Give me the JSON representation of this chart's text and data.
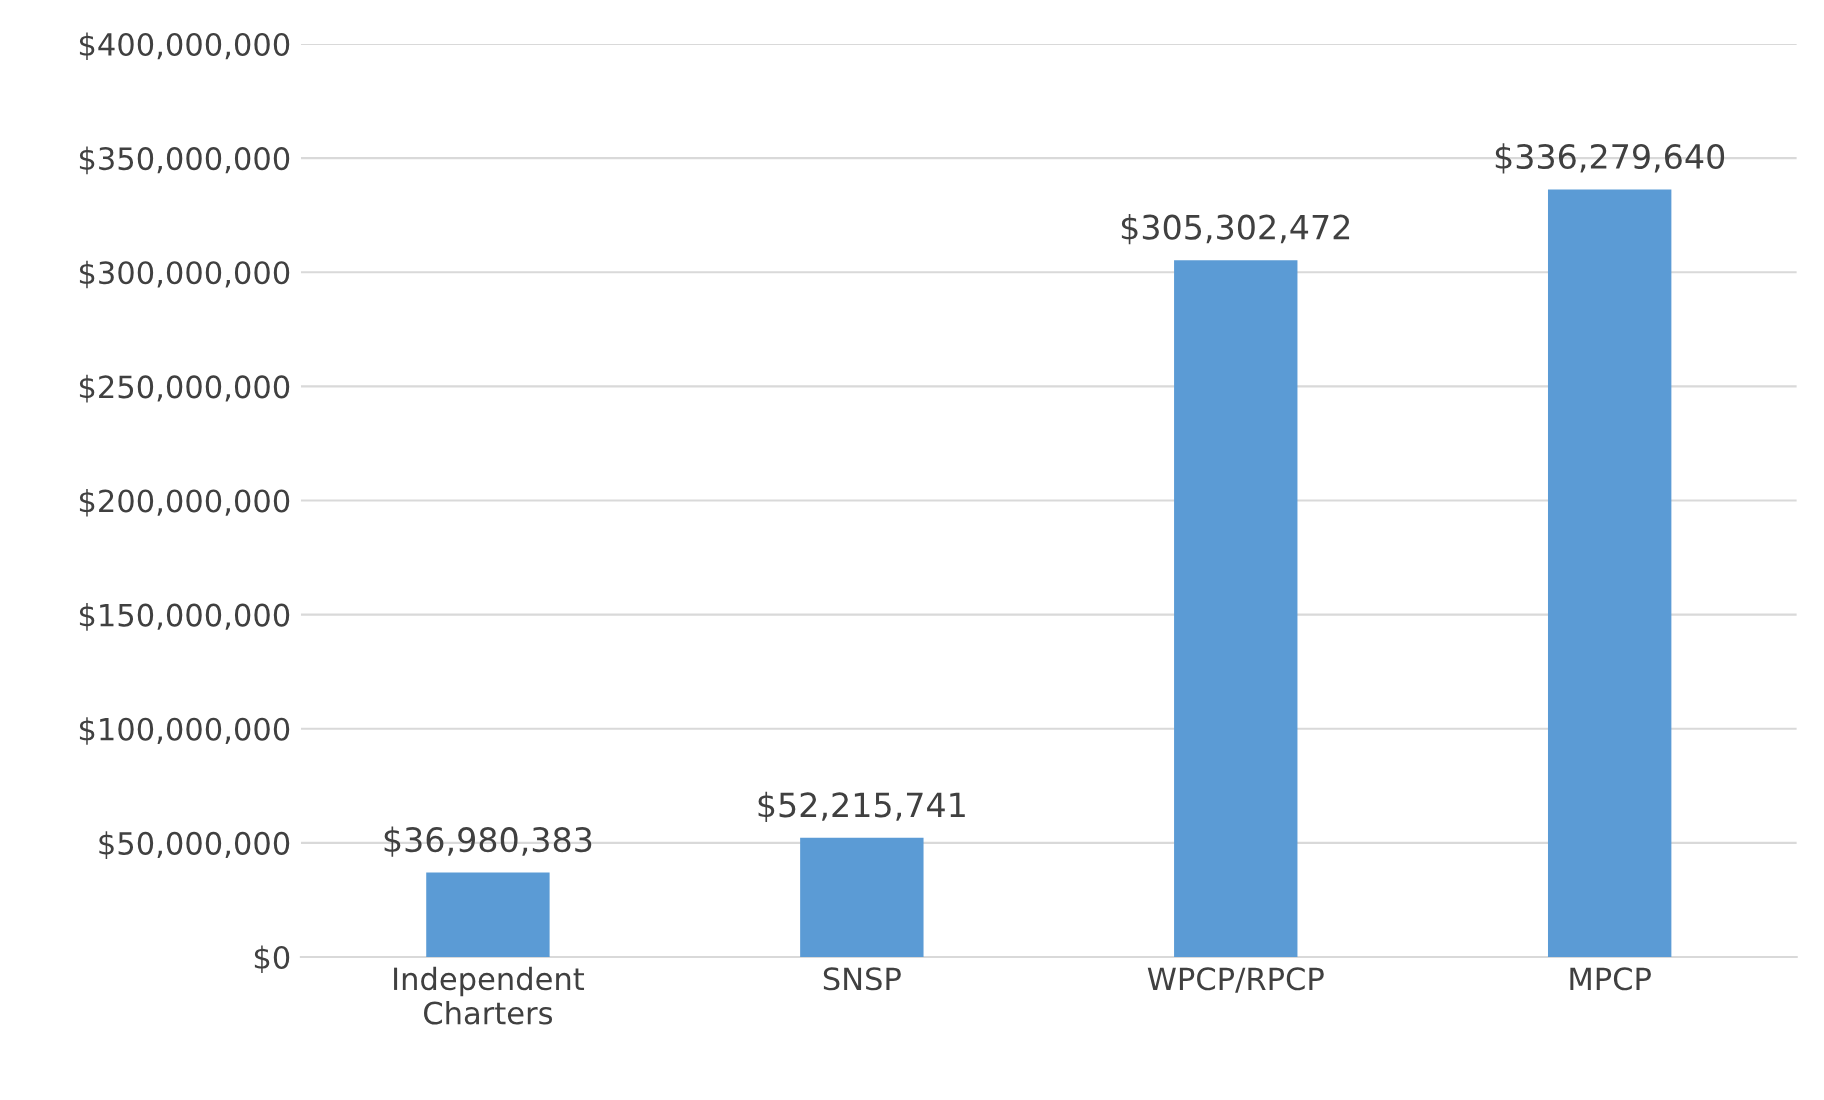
{
  "chart_data": {
    "type": "bar",
    "categories": [
      "Independent Charters",
      "SNSP",
      "WPCP/RPCP",
      "MPCP"
    ],
    "values": [
      36980383,
      52215741,
      305302472,
      336279640
    ],
    "value_labels": [
      "$36,980,383",
      "$52,215,741",
      "$305,302,472",
      "$336,279,640"
    ],
    "color": "#5b9bd5",
    "ylim": [
      0,
      400000000
    ],
    "yticks": [
      {
        "value": 0,
        "label": "$0"
      },
      {
        "value": 50000000,
        "label": "$50,000,000"
      },
      {
        "value": 100000000,
        "label": "$100,000,000"
      },
      {
        "value": 150000000,
        "label": "$150,000,000"
      },
      {
        "value": 200000000,
        "label": "$200,000,000"
      },
      {
        "value": 250000000,
        "label": "$250,000,000"
      },
      {
        "value": 300000000,
        "label": "$300,000,000"
      },
      {
        "value": 350000000,
        "label": "$350,000,000"
      },
      {
        "value": 400000000,
        "label": "$400,000,000"
      }
    ],
    "grid": "y",
    "legend": false
  }
}
